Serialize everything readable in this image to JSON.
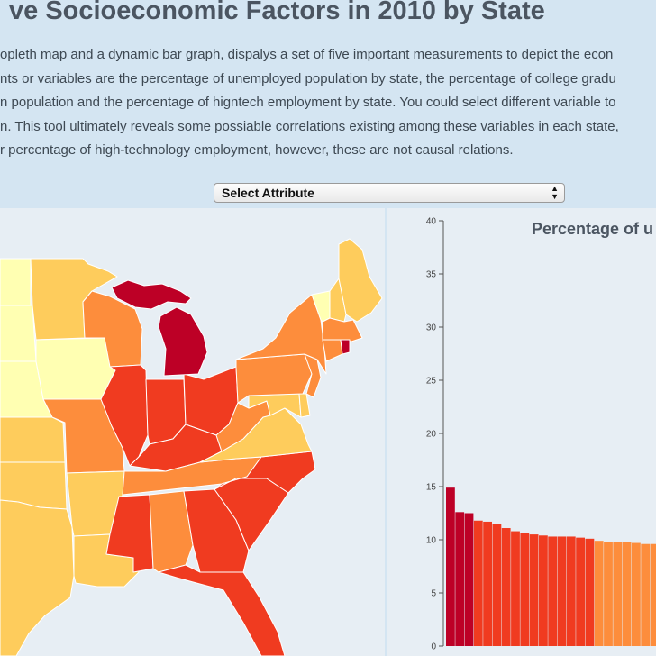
{
  "page": {
    "title": "ve Socioeconomic Factors in 2010 by State",
    "intro_lines": [
      "opleth map and a dynamic bar graph, dispalys a set of five important measurements to depict the econ",
      "nts or variables are the percentage of unemployed population by state, the percentage of college gradu",
      "n population and the percentage of higntech employment by state. You could select different variable to",
      "n. This tool ultimately reveals some possiable correlations existing among these variables in each state,",
      "r percentage of high-technology employment, however, these are not causal relations."
    ]
  },
  "controls": {
    "select_label": "Select Attribute"
  },
  "colors": {
    "background": "#d4e5f2",
    "panel": "#e7eef4",
    "class_1": "#ffffb2",
    "class_2": "#fecc5c",
    "class_3": "#fd8d3c",
    "class_4": "#f03b20",
    "class_5": "#bd0026"
  },
  "map": {
    "states": [
      {
        "name": "Minnesota",
        "class": 2
      },
      {
        "name": "Wisconsin",
        "class": 3
      },
      {
        "name": "Michigan",
        "class": 5
      },
      {
        "name": "Iowa",
        "class": 1
      },
      {
        "name": "Illinois",
        "class": 4
      },
      {
        "name": "Indiana",
        "class": 4
      },
      {
        "name": "Ohio",
        "class": 4
      },
      {
        "name": "Missouri",
        "class": 3
      },
      {
        "name": "Kentucky",
        "class": 4
      },
      {
        "name": "Tennessee",
        "class": 3
      },
      {
        "name": "Arkansas",
        "class": 2
      },
      {
        "name": "Louisiana",
        "class": 2
      },
      {
        "name": "Mississippi",
        "class": 4
      },
      {
        "name": "Alabama",
        "class": 3
      },
      {
        "name": "Georgia",
        "class": 4
      },
      {
        "name": "Florida",
        "class": 4
      },
      {
        "name": "South Carolina",
        "class": 4
      },
      {
        "name": "North Carolina",
        "class": 4
      },
      {
        "name": "Virginia",
        "class": 2
      },
      {
        "name": "West Virginia",
        "class": 3
      },
      {
        "name": "Pennsylvania",
        "class": 3
      },
      {
        "name": "New York",
        "class": 3
      },
      {
        "name": "Maine",
        "class": 2
      },
      {
        "name": "Vermont",
        "class": 1
      },
      {
        "name": "New Hampshire",
        "class": 2
      },
      {
        "name": "Massachusetts",
        "class": 3
      },
      {
        "name": "Connecticut",
        "class": 3
      },
      {
        "name": "Rhode Island",
        "class": 5
      },
      {
        "name": "New Jersey",
        "class": 3
      },
      {
        "name": "Delaware",
        "class": 2
      },
      {
        "name": "Maryland",
        "class": 2
      },
      {
        "name": "North Dakota",
        "class": 1
      },
      {
        "name": "South Dakota",
        "class": 1
      },
      {
        "name": "Nebraska",
        "class": 1
      },
      {
        "name": "Kansas",
        "class": 2
      },
      {
        "name": "Oklahoma",
        "class": 2
      },
      {
        "name": "Texas",
        "class": 2
      }
    ]
  },
  "chart_data": {
    "type": "bar",
    "title": "Percentage of u",
    "ylim": [
      0,
      40
    ],
    "yticks": [
      0,
      5,
      10,
      15,
      20,
      25,
      30,
      35,
      40
    ],
    "values": [
      14.9,
      12.6,
      12.5,
      11.8,
      11.7,
      11.5,
      11.1,
      10.8,
      10.6,
      10.5,
      10.4,
      10.3,
      10.3,
      10.3,
      10.2,
      10.1,
      9.9,
      9.8,
      9.8,
      9.8,
      9.7,
      9.6,
      9.6,
      9.5
    ],
    "bar_classes": [
      5,
      5,
      5,
      4,
      4,
      4,
      4,
      4,
      4,
      4,
      4,
      4,
      4,
      4,
      4,
      4,
      3,
      3,
      3,
      3,
      3,
      3,
      3,
      3
    ],
    "grid": false
  }
}
